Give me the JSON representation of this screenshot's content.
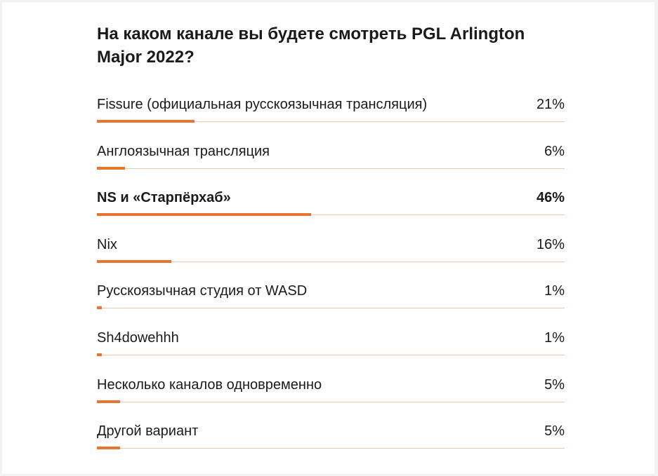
{
  "poll": {
    "question": "На каком канале вы будете смотреть PGL Arlington Major 2022?",
    "accent_color": "#e8742e",
    "track_color": "#f0c9b0",
    "options": [
      {
        "label": "Fissure (официальная русскоязычная трансляция)",
        "percent_text": "21%",
        "percent": 21,
        "selected": false
      },
      {
        "label": "Англоязычная трансляция",
        "percent_text": "6%",
        "percent": 6,
        "selected": false
      },
      {
        "label": "NS и «Старпёрхаб»",
        "percent_text": "46%",
        "percent": 46,
        "selected": true
      },
      {
        "label": "Nix",
        "percent_text": "16%",
        "percent": 16,
        "selected": false
      },
      {
        "label": "Русскоязычная студия от WASD",
        "percent_text": "1%",
        "percent": 1,
        "selected": false
      },
      {
        "label": "Sh4dowehhh",
        "percent_text": "1%",
        "percent": 1,
        "selected": false
      },
      {
        "label": "Несколько каналов одновременно",
        "percent_text": "5%",
        "percent": 5,
        "selected": false
      },
      {
        "label": "Другой вариант",
        "percent_text": "5%",
        "percent": 5,
        "selected": false
      }
    ]
  }
}
